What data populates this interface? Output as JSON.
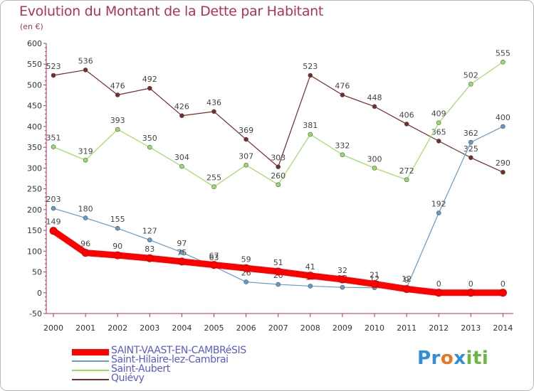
{
  "title": "Evolution du Montant de la Dette par Habitant",
  "subtitle": "(en €)",
  "logo": "Proxiti",
  "chart_data": {
    "type": "line",
    "categories": [
      "2000",
      "2001",
      "2002",
      "2003",
      "2004",
      "2005",
      "2006",
      "2007",
      "2008",
      "2009",
      "2010",
      "2011",
      "2012",
      "2013",
      "2014"
    ],
    "ylim": [
      -50,
      600
    ],
    "yticks": [
      -50,
      0,
      50,
      100,
      150,
      200,
      250,
      300,
      350,
      400,
      450,
      500,
      550,
      600
    ],
    "grid": false,
    "legend_position": "bottom-left",
    "series": [
      {
        "name": "SAINT-VAAST-EN-CAMBRéSIS",
        "color": "#ff0000",
        "values": [
          149,
          96,
          90,
          83,
          75,
          67,
          59,
          51,
          41,
          32,
          21,
          9,
          0,
          0,
          0
        ],
        "labels": [
          "149",
          "96",
          "90",
          "83",
          "75",
          "67",
          "59",
          "51",
          "41",
          "32",
          "21",
          "9",
          "0",
          "0",
          "0"
        ]
      },
      {
        "name": "Saint-Hilaire-lez-Cambrai",
        "color": "#6699cc",
        "values": [
          203,
          180,
          155,
          127,
          97,
          63,
          26,
          20,
          16,
          13,
          12,
          12,
          192,
          362,
          400
        ],
        "labels": [
          "203",
          "180",
          "155",
          "127",
          "97",
          "63",
          "26",
          "20",
          "16",
          "13",
          "12",
          "12",
          "192",
          "362",
          "400"
        ]
      },
      {
        "name": "Saint-Aubert",
        "color": "#99dd66",
        "values": [
          351,
          319,
          393,
          350,
          304,
          255,
          307,
          260,
          381,
          332,
          300,
          272,
          409,
          502,
          555
        ],
        "labels": [
          "351",
          "319",
          "393",
          "350",
          "304",
          "255",
          "307",
          "260",
          "381",
          "332",
          "300",
          "272",
          "409",
          "502",
          "555"
        ]
      },
      {
        "name": "Quiévy",
        "color": "#7a2a2a",
        "values": [
          523,
          536,
          476,
          492,
          426,
          436,
          369,
          303,
          523,
          476,
          448,
          406,
          365,
          325,
          290
        ],
        "labels": [
          "523",
          "536",
          "476",
          "492",
          "426",
          "436",
          "369",
          "303",
          "523",
          "476",
          "448",
          "406",
          "365",
          "325",
          "290"
        ]
      }
    ]
  }
}
